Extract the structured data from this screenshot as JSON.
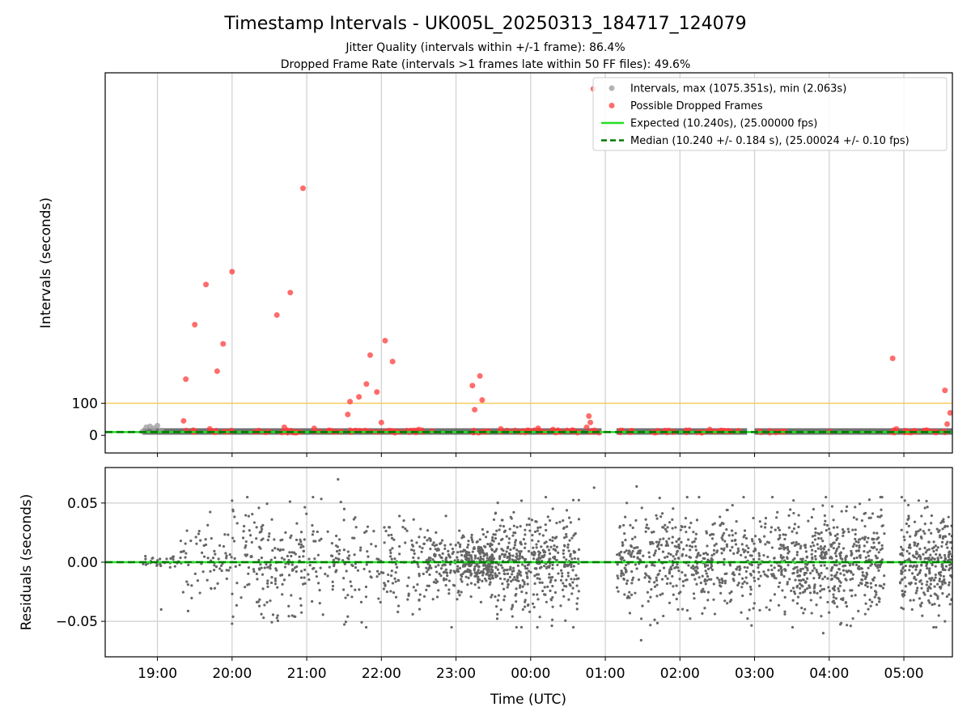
{
  "figure": {
    "title": "Timestamp Intervals - UK005L_20250313_184717_124079",
    "subtitle_1": "Jitter Quality (intervals within +/-1 frame): 86.4%",
    "subtitle_2": "Dropped Frame Rate (intervals >1 frames late within 50 FF files): 49.6%"
  },
  "colors": {
    "intervals": "#a0a0a0",
    "dropped": "#ff3b3b",
    "expected": "#22e022",
    "median": "#007a00",
    "threshold": "#f5c542",
    "residuals": "#666666",
    "band": "#4d4d4d"
  },
  "chart_data": [
    {
      "type": "scatter",
      "panel": "intervals",
      "xlabel": "",
      "ylabel": "Intervals (seconds)",
      "x_unit": "hours relative to 00:00 UTC",
      "xlim": [
        -5.7,
        5.65
      ],
      "ylim": [
        -55,
        1130
      ],
      "yticks": [
        0,
        100
      ],
      "reference_line_y": 100,
      "grid": "vertical",
      "legend_position": "upper right",
      "legend": [
        {
          "label": "Intervals, max (1075.351s), min (2.063s)",
          "style": "marker-grey"
        },
        {
          "label": "Possible Dropped Frames",
          "style": "marker-red"
        },
        {
          "label": "Expected (10.240s), (25.00000 fps)",
          "style": "line-solid-green"
        },
        {
          "label": "Median (10.240 +/- 0.184 s), (25.00024 +/- 0.10 fps)",
          "style": "line-dashed-darkgreen"
        }
      ],
      "expected_y": 10.24,
      "median_y": 10.24,
      "intervals_points": [
        {
          "x": -5.15,
          "y": 25
        },
        {
          "x": -5.1,
          "y": 28
        },
        {
          "x": -5.05,
          "y": 22
        },
        {
          "x": -5.0,
          "y": 30
        },
        {
          "x": -5.2,
          "y": 12
        },
        {
          "x": -4.95,
          "y": 15
        }
      ],
      "dropped_points": [
        {
          "x": -4.62,
          "y": 175
        },
        {
          "x": -4.65,
          "y": 45
        },
        {
          "x": -4.5,
          "y": 345
        },
        {
          "x": -4.35,
          "y": 470
        },
        {
          "x": -4.2,
          "y": 200
        },
        {
          "x": -4.12,
          "y": 285
        },
        {
          "x": -4.0,
          "y": 510
        },
        {
          "x": -3.4,
          "y": 375
        },
        {
          "x": -3.22,
          "y": 445
        },
        {
          "x": -3.05,
          "y": 770
        },
        {
          "x": -2.42,
          "y": 105
        },
        {
          "x": -2.3,
          "y": 120
        },
        {
          "x": -2.2,
          "y": 160
        },
        {
          "x": -2.15,
          "y": 250
        },
        {
          "x": -2.06,
          "y": 135
        },
        {
          "x": -1.95,
          "y": 295
        },
        {
          "x": -1.85,
          "y": 230
        },
        {
          "x": -2.45,
          "y": 65
        },
        {
          "x": -2.0,
          "y": 40
        },
        {
          "x": -1.9,
          "y": 15
        },
        {
          "x": -0.78,
          "y": 155
        },
        {
          "x": -0.68,
          "y": 185
        },
        {
          "x": -0.75,
          "y": 80
        },
        {
          "x": -0.65,
          "y": 110
        },
        {
          "x": 0.78,
          "y": 60
        },
        {
          "x": 0.8,
          "y": 40
        },
        {
          "x": 0.84,
          "y": 1080
        },
        {
          "x": 0.75,
          "y": 25
        },
        {
          "x": 4.85,
          "y": 240
        },
        {
          "x": 5.55,
          "y": 140
        },
        {
          "x": 5.62,
          "y": 70
        },
        {
          "x": 5.58,
          "y": 35
        },
        {
          "x": -4.3,
          "y": 20
        },
        {
          "x": -3.3,
          "y": 25
        },
        {
          "x": -2.9,
          "y": 22
        },
        {
          "x": -1.5,
          "y": 18
        },
        {
          "x": -0.4,
          "y": 20
        },
        {
          "x": 0.1,
          "y": 22
        },
        {
          "x": 0.3,
          "y": 18
        },
        {
          "x": 1.8,
          "y": 15
        },
        {
          "x": 2.4,
          "y": 18
        },
        {
          "x": 3.2,
          "y": 14
        },
        {
          "x": 4.0,
          "y": 12
        },
        {
          "x": 4.9,
          "y": 20
        },
        {
          "x": 5.3,
          "y": 16
        }
      ],
      "dropped_clusters": [
        [
          -4.65,
          -4.45
        ],
        [
          -4.3,
          -4.2
        ],
        [
          -4.12,
          -4.0
        ],
        [
          -3.75,
          -3.5
        ],
        [
          -3.45,
          -3.0
        ],
        [
          -2.9,
          -2.5
        ],
        [
          -2.45,
          -2.1
        ],
        [
          -2.05,
          -1.3
        ],
        [
          -0.8,
          -0.5
        ],
        [
          -0.45,
          0.95
        ],
        [
          1.15,
          1.4
        ],
        [
          1.6,
          2.0
        ],
        [
          2.05,
          2.8
        ],
        [
          3.05,
          3.4
        ],
        [
          4.8,
          4.9
        ],
        [
          5.0,
          5.65
        ]
      ],
      "band_segments": [
        [
          -5.2,
          -4.6
        ],
        [
          -4.6,
          -1.3
        ],
        [
          -1.3,
          0.95
        ],
        [
          1.15,
          2.9
        ],
        [
          3.0,
          3.4
        ],
        [
          3.4,
          4.75
        ],
        [
          4.75,
          5.65
        ]
      ]
    },
    {
      "type": "scatter",
      "panel": "residuals",
      "xlabel": "Time (UTC)",
      "ylabel": "Residuals (seconds)",
      "x_unit": "hours relative to 00:00 UTC",
      "xlim": [
        -5.7,
        5.65
      ],
      "ylim": [
        -0.08,
        0.08
      ],
      "yticks": [
        0.05,
        0.0,
        -0.05
      ],
      "ytick_labels": [
        "0.05",
        "0.00",
        "−0.05"
      ],
      "xticks": [
        -5,
        -4,
        -3,
        -2,
        -1,
        0,
        1,
        2,
        3,
        4,
        5
      ],
      "xtick_labels": [
        "19:00",
        "20:00",
        "21:00",
        "22:00",
        "23:00",
        "00:00",
        "01:00",
        "02:00",
        "03:00",
        "04:00",
        "05:00"
      ],
      "grid": "both",
      "spread_by_segment": [
        {
          "x0": -5.2,
          "x1": -4.7,
          "sd": 0.0025,
          "n": 30
        },
        {
          "x0": -4.7,
          "x1": -4.0,
          "sd": 0.018,
          "n": 70
        },
        {
          "x0": -4.0,
          "x1": -3.1,
          "sd": 0.022,
          "n": 150
        },
        {
          "x0": -3.1,
          "x1": -1.4,
          "sd": 0.02,
          "n": 230
        },
        {
          "x0": -1.4,
          "x1": -0.9,
          "sd": 0.014,
          "n": 140
        },
        {
          "x0": -0.9,
          "x1": -0.5,
          "sd": 0.01,
          "n": 240
        },
        {
          "x0": -0.5,
          "x1": 0.65,
          "sd": 0.022,
          "n": 420
        },
        {
          "x0": 1.15,
          "x1": 3.5,
          "sd": 0.02,
          "n": 600
        },
        {
          "x0": 3.5,
          "x1": 4.75,
          "sd": 0.022,
          "n": 450
        },
        {
          "x0": 4.95,
          "x1": 5.65,
          "sd": 0.021,
          "n": 300
        }
      ],
      "notable_points": [
        {
          "x": -4.95,
          "y": -0.04
        },
        {
          "x": -4.0,
          "y": 0.052
        },
        {
          "x": -4.0,
          "y": -0.052
        },
        {
          "x": -2.58,
          "y": 0.07
        },
        {
          "x": -2.45,
          "y": -0.046
        },
        {
          "x": 1.42,
          "y": 0.064
        },
        {
          "x": 1.48,
          "y": -0.066
        },
        {
          "x": 0.85,
          "y": 0.063
        },
        {
          "x": 3.92,
          "y": -0.06
        },
        {
          "x": 5.55,
          "y": -0.05
        }
      ]
    }
  ]
}
